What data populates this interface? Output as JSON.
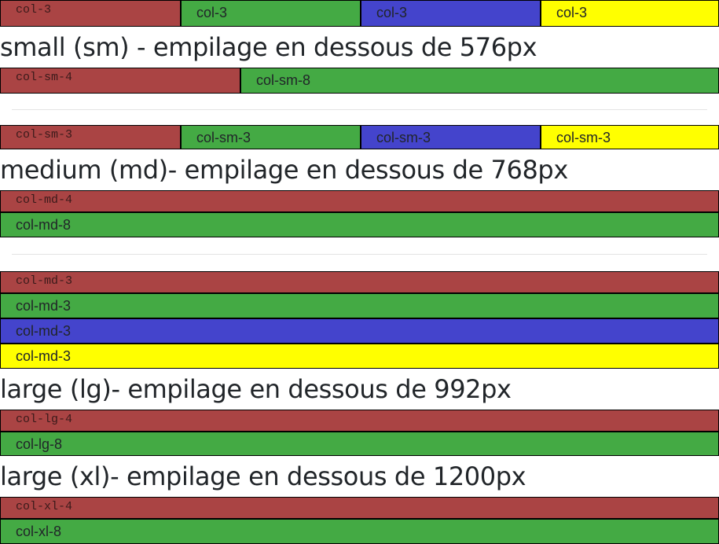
{
  "colors": {
    "red": "#aa4444",
    "green": "#44aa44",
    "blue": "#4444cc",
    "yellow": "#ffff00"
  },
  "row1": [
    "col-3",
    "col-3",
    "col-3",
    "col-3"
  ],
  "small": {
    "heading": "small (sm) - empilage en dessous de 576px",
    "row": [
      "col-sm-4",
      "col-sm-8"
    ],
    "row_quarter": [
      "col-sm-3",
      "col-sm-3",
      "col-sm-3",
      "col-sm-3"
    ]
  },
  "medium": {
    "heading": "medium (md)- empilage en dessous de 768px",
    "row": [
      "col-md-4",
      "col-md-8"
    ],
    "row_quarter": [
      "col-md-3",
      "col-md-3",
      "col-md-3",
      "col-md-3"
    ]
  },
  "large": {
    "heading": "large (lg)- empilage en dessous de 992px",
    "row": [
      "col-lg-4",
      "col-lg-8"
    ]
  },
  "xlarge": {
    "heading": "large (xl)- empilage en dessous de 1200px",
    "row": [
      "col-xl-4",
      "col-xl-8"
    ]
  }
}
